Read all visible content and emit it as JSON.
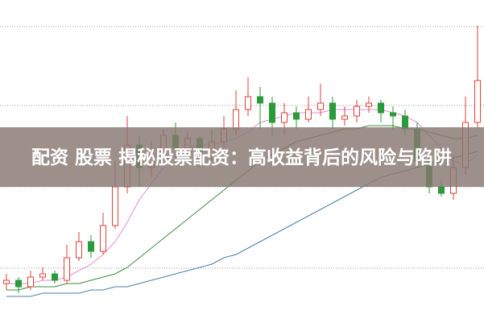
{
  "chart_data": {
    "type": "candlestick",
    "title": "配资 股票 揭秘股票配资：高收益背后的风险与陷阱",
    "ylim": [
      0,
      100
    ],
    "up_color": "#e0403a",
    "down_color": "#2a9a3a",
    "open": [
      12,
      13,
      11,
      14,
      15,
      13,
      20,
      25,
      22,
      30,
      42,
      55,
      48,
      52,
      58,
      54,
      57,
      52,
      56,
      60,
      66,
      70,
      68,
      62,
      65,
      63,
      66,
      68,
      63,
      64,
      67,
      68,
      65,
      64,
      60,
      50,
      42,
      40,
      48,
      62
    ],
    "close": [
      13,
      11,
      14,
      15,
      13,
      20,
      25,
      22,
      30,
      42,
      55,
      48,
      52,
      58,
      54,
      57,
      52,
      56,
      60,
      66,
      70,
      68,
      62,
      65,
      63,
      66,
      68,
      63,
      64,
      67,
      68,
      65,
      64,
      60,
      50,
      42,
      40,
      48,
      62,
      75
    ],
    "high": [
      15,
      14,
      16,
      17,
      16,
      24,
      28,
      27,
      34,
      50,
      64,
      58,
      56,
      60,
      62,
      59,
      58,
      60,
      64,
      72,
      76,
      73,
      70,
      68,
      67,
      70,
      74,
      70,
      67,
      69,
      70,
      69,
      67,
      66,
      62,
      52,
      44,
      52,
      70,
      92
    ],
    "low": [
      10,
      9,
      10,
      13,
      12,
      12,
      19,
      20,
      21,
      29,
      40,
      42,
      45,
      50,
      50,
      52,
      48,
      50,
      54,
      58,
      64,
      60,
      58,
      58,
      60,
      62,
      64,
      60,
      61,
      62,
      65,
      62,
      60,
      58,
      48,
      40,
      39,
      38,
      46,
      60
    ],
    "series": [
      {
        "color": "#e58ad6",
        "values": [
          12,
          12,
          12,
          13,
          13,
          14,
          16,
          18,
          21,
          25,
          31,
          38,
          43,
          48,
          52,
          54,
          55,
          55,
          56,
          57,
          59,
          62,
          63,
          64,
          65,
          65,
          65,
          66,
          66,
          66,
          66,
          66,
          65,
          64,
          62,
          58,
          54,
          50,
          49,
          52
        ]
      },
      {
        "color": "#3d8a3d",
        "values": [
          10,
          10,
          11,
          11,
          11,
          12,
          12,
          13,
          14,
          15,
          17,
          20,
          23,
          26,
          29,
          32,
          35,
          38,
          41,
          44,
          47,
          50,
          52,
          54,
          56,
          57,
          58,
          59,
          60,
          60,
          61,
          61,
          61,
          60,
          60,
          59,
          58,
          57,
          57,
          58
        ]
      },
      {
        "color": "#4a7fa0",
        "values": [
          8,
          8,
          8,
          9,
          9,
          9,
          9,
          10,
          10,
          11,
          11,
          12,
          13,
          14,
          15,
          16,
          17,
          18,
          20,
          21,
          23,
          25,
          27,
          29,
          31,
          33,
          35,
          37,
          39,
          41,
          43,
          45,
          46,
          47,
          48,
          49,
          50,
          51,
          52,
          53
        ]
      }
    ]
  }
}
